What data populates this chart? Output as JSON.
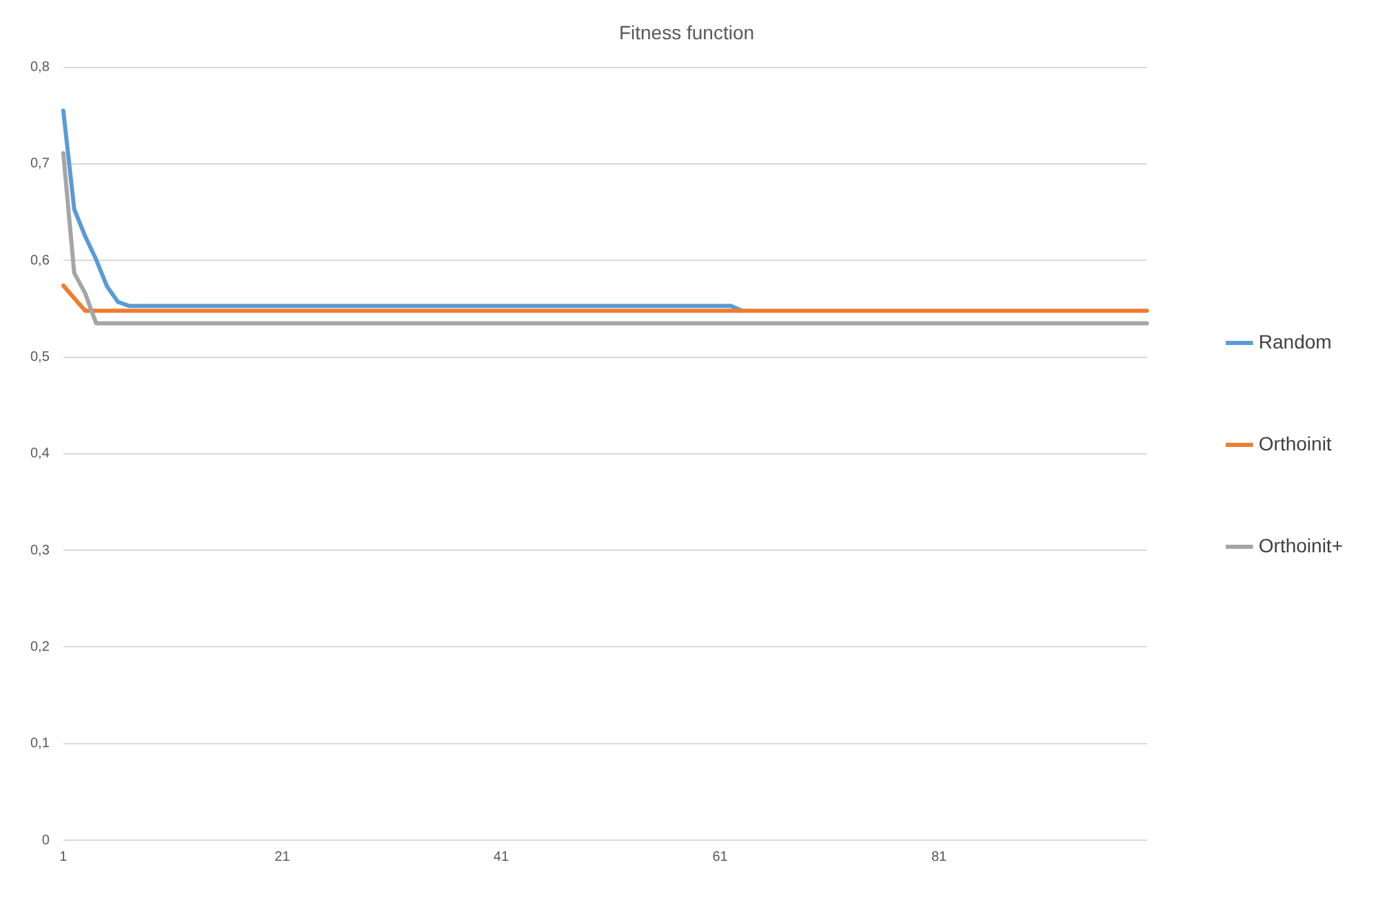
{
  "chart_data": {
    "type": "line",
    "title": "Fitness function",
    "categories": [
      "1",
      null,
      null,
      null,
      null,
      null,
      null,
      null,
      null,
      null,
      null,
      null,
      null,
      null,
      null,
      null,
      null,
      null,
      null,
      null,
      "21",
      null,
      null,
      null,
      null,
      null,
      null,
      null,
      null,
      null,
      null,
      null,
      null,
      null,
      null,
      null,
      null,
      null,
      null,
      null,
      "41",
      null,
      null,
      null,
      null,
      null,
      null,
      null,
      null,
      null,
      null,
      null,
      null,
      null,
      null,
      null,
      null,
      null,
      null,
      null,
      "61",
      null,
      null,
      null,
      null,
      null,
      null,
      null,
      null,
      null,
      null,
      null,
      null,
      null,
      null,
      null,
      null,
      null,
      null,
      null,
      "81",
      null,
      null,
      null,
      null,
      null,
      null,
      null,
      null,
      null,
      null,
      null,
      null,
      null,
      null,
      null,
      null,
      null,
      null,
      null
    ],
    "series": [
      {
        "name": "Random",
        "color": "#5b9bd5",
        "values": [
          0.755,
          0.653,
          0.625,
          0.601,
          0.573,
          0.557,
          0.553,
          0.553,
          0.553,
          0.553,
          0.553,
          0.553,
          0.553,
          0.553,
          0.553,
          0.553,
          0.553,
          0.553,
          0.553,
          0.553,
          0.553,
          0.553,
          0.553,
          0.553,
          0.553,
          0.553,
          0.553,
          0.553,
          0.553,
          0.553,
          0.553,
          0.553,
          0.553,
          0.553,
          0.553,
          0.553,
          0.553,
          0.553,
          0.553,
          0.553,
          0.553,
          0.553,
          0.553,
          0.553,
          0.553,
          0.553,
          0.553,
          0.553,
          0.553,
          0.553,
          0.553,
          0.553,
          0.553,
          0.553,
          0.553,
          0.553,
          0.553,
          0.553,
          0.553,
          0.553,
          0.553,
          0.553,
          0.548,
          null,
          null,
          null,
          null,
          null,
          null,
          null,
          null,
          null,
          null,
          null,
          null,
          null,
          null,
          null,
          null,
          null,
          null,
          null,
          null,
          null,
          null,
          null,
          null,
          null,
          null,
          null,
          null,
          null,
          null,
          null,
          null,
          null,
          null,
          null,
          null,
          null
        ]
      },
      {
        "name": "Orthoinit",
        "color": "#ed7d31",
        "values": [
          0.574,
          0.561,
          0.548,
          0.548,
          0.548,
          0.548,
          0.548,
          0.548,
          0.548,
          0.548,
          0.548,
          0.548,
          0.548,
          0.548,
          0.548,
          0.548,
          0.548,
          0.548,
          0.548,
          0.548,
          0.548,
          0.548,
          0.548,
          0.548,
          0.548,
          0.548,
          0.548,
          0.548,
          0.548,
          0.548,
          0.548,
          0.548,
          0.548,
          0.548,
          0.548,
          0.548,
          0.548,
          0.548,
          0.548,
          0.548,
          0.548,
          0.548,
          0.548,
          0.548,
          0.548,
          0.548,
          0.548,
          0.548,
          0.548,
          0.548,
          0.548,
          0.548,
          0.548,
          0.548,
          0.548,
          0.548,
          0.548,
          0.548,
          0.548,
          0.548,
          0.548,
          0.548,
          0.548,
          0.548,
          0.548,
          0.548,
          0.548,
          0.548,
          0.548,
          0.548,
          0.548,
          0.548,
          0.548,
          0.548,
          0.548,
          0.548,
          0.548,
          0.548,
          0.548,
          0.548,
          0.548,
          0.548,
          0.548,
          0.548,
          0.548,
          0.548,
          0.548,
          0.548,
          0.548,
          0.548,
          0.548,
          0.548,
          0.548,
          0.548,
          0.548,
          0.548,
          0.548,
          0.548,
          0.548,
          0.548
        ]
      },
      {
        "name": "Orthoinit+",
        "color": "#a5a5a5",
        "values": [
          0.711,
          0.587,
          0.566,
          0.535,
          0.535,
          0.535,
          0.535,
          0.535,
          0.535,
          0.535,
          0.535,
          0.535,
          0.535,
          0.535,
          0.535,
          0.535,
          0.535,
          0.535,
          0.535,
          0.535,
          0.535,
          0.535,
          0.535,
          0.535,
          0.535,
          0.535,
          0.535,
          0.535,
          0.535,
          0.535,
          0.535,
          0.535,
          0.535,
          0.535,
          0.535,
          0.535,
          0.535,
          0.535,
          0.535,
          0.535,
          0.535,
          0.535,
          0.535,
          0.535,
          0.535,
          0.535,
          0.535,
          0.535,
          0.535,
          0.535,
          0.535,
          0.535,
          0.535,
          0.535,
          0.535,
          0.535,
          0.535,
          0.535,
          0.535,
          0.535,
          0.535,
          0.535,
          0.535,
          0.535,
          0.535,
          0.535,
          0.535,
          0.535,
          0.535,
          0.535,
          0.535,
          0.535,
          0.535,
          0.535,
          0.535,
          0.535,
          0.535,
          0.535,
          0.535,
          0.535,
          0.535,
          0.535,
          0.535,
          0.535,
          0.535,
          0.535,
          0.535,
          0.535,
          0.535,
          0.535,
          0.535,
          0.535,
          0.535,
          0.535,
          0.535,
          0.535,
          0.535,
          0.535,
          0.535,
          0.535
        ]
      }
    ],
    "ylim": [
      0,
      0.8
    ],
    "yticks": [
      0,
      {
        "value": 0.1,
        "label": "0,1"
      },
      {
        "value": 0.2,
        "label": "0,2"
      },
      {
        "value": 0.3,
        "label": "0,3"
      },
      {
        "value": 0.4,
        "label": "0,4"
      },
      {
        "value": 0.5,
        "label": "0,5"
      },
      {
        "value": 0.6,
        "label": "0,6"
      },
      {
        "value": 0.7,
        "label": "0,7"
      },
      {
        "value": 0.8,
        "label": "0,8"
      }
    ],
    "grid": "y",
    "legend": "right",
    "marker": "none",
    "line_style": "solid"
  }
}
